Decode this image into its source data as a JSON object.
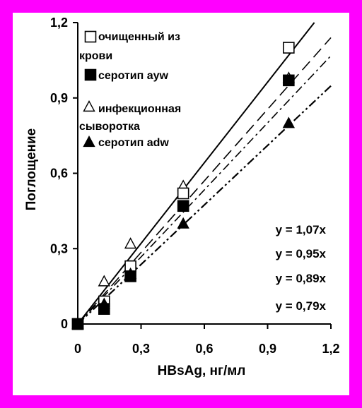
{
  "chart_data": {
    "type": "scatter",
    "title": "",
    "xlabel": "HBsAg, нг/мл",
    "ylabel": "Поглощение",
    "xlim": [
      0,
      1.2
    ],
    "ylim": [
      0,
      1.2
    ],
    "x_ticks": [
      "0",
      "0,3",
      "0,6",
      "0,9",
      "1,2"
    ],
    "y_ticks": [
      "0",
      "0,3",
      "0,6",
      "0,9",
      "1,2"
    ],
    "grid": false,
    "legend_position": "top-left",
    "series": [
      {
        "name": "очищенный из крови",
        "marker": "open-square",
        "line_style": "solid",
        "slope": 1.07,
        "points": [
          [
            0,
            0
          ],
          [
            0.125,
            0.09
          ],
          [
            0.25,
            0.23
          ],
          [
            0.5,
            0.52
          ],
          [
            1.0,
            1.1
          ]
        ]
      },
      {
        "name": "серотип ayw",
        "marker": "filled-square",
        "line_style": "long-dash",
        "slope": 0.95,
        "points": [
          [
            0,
            0
          ],
          [
            0.125,
            0.06
          ],
          [
            0.25,
            0.19
          ],
          [
            0.5,
            0.47
          ],
          [
            1.0,
            0.97
          ]
        ]
      },
      {
        "name": "инфекционная сыворотка",
        "marker": "open-triangle",
        "line_style": "dash-dot",
        "slope": 0.89,
        "points": [
          [
            0,
            0
          ],
          [
            0.125,
            0.17
          ],
          [
            0.25,
            0.32
          ],
          [
            0.5,
            0.55
          ],
          [
            1.0,
            0.98
          ]
        ]
      },
      {
        "name": "серотип adw",
        "marker": "filled-triangle",
        "line_style": "dash-dot-dot",
        "slope": 0.79,
        "points": [
          [
            0,
            0
          ],
          [
            0.125,
            0.08
          ],
          [
            0.25,
            0.2
          ],
          [
            0.5,
            0.4
          ],
          [
            1.0,
            0.8
          ]
        ]
      }
    ],
    "equations": [
      "y = 1,07x",
      "y = 0,95x",
      "y = 0,89x",
      "y = 0,79x"
    ]
  }
}
